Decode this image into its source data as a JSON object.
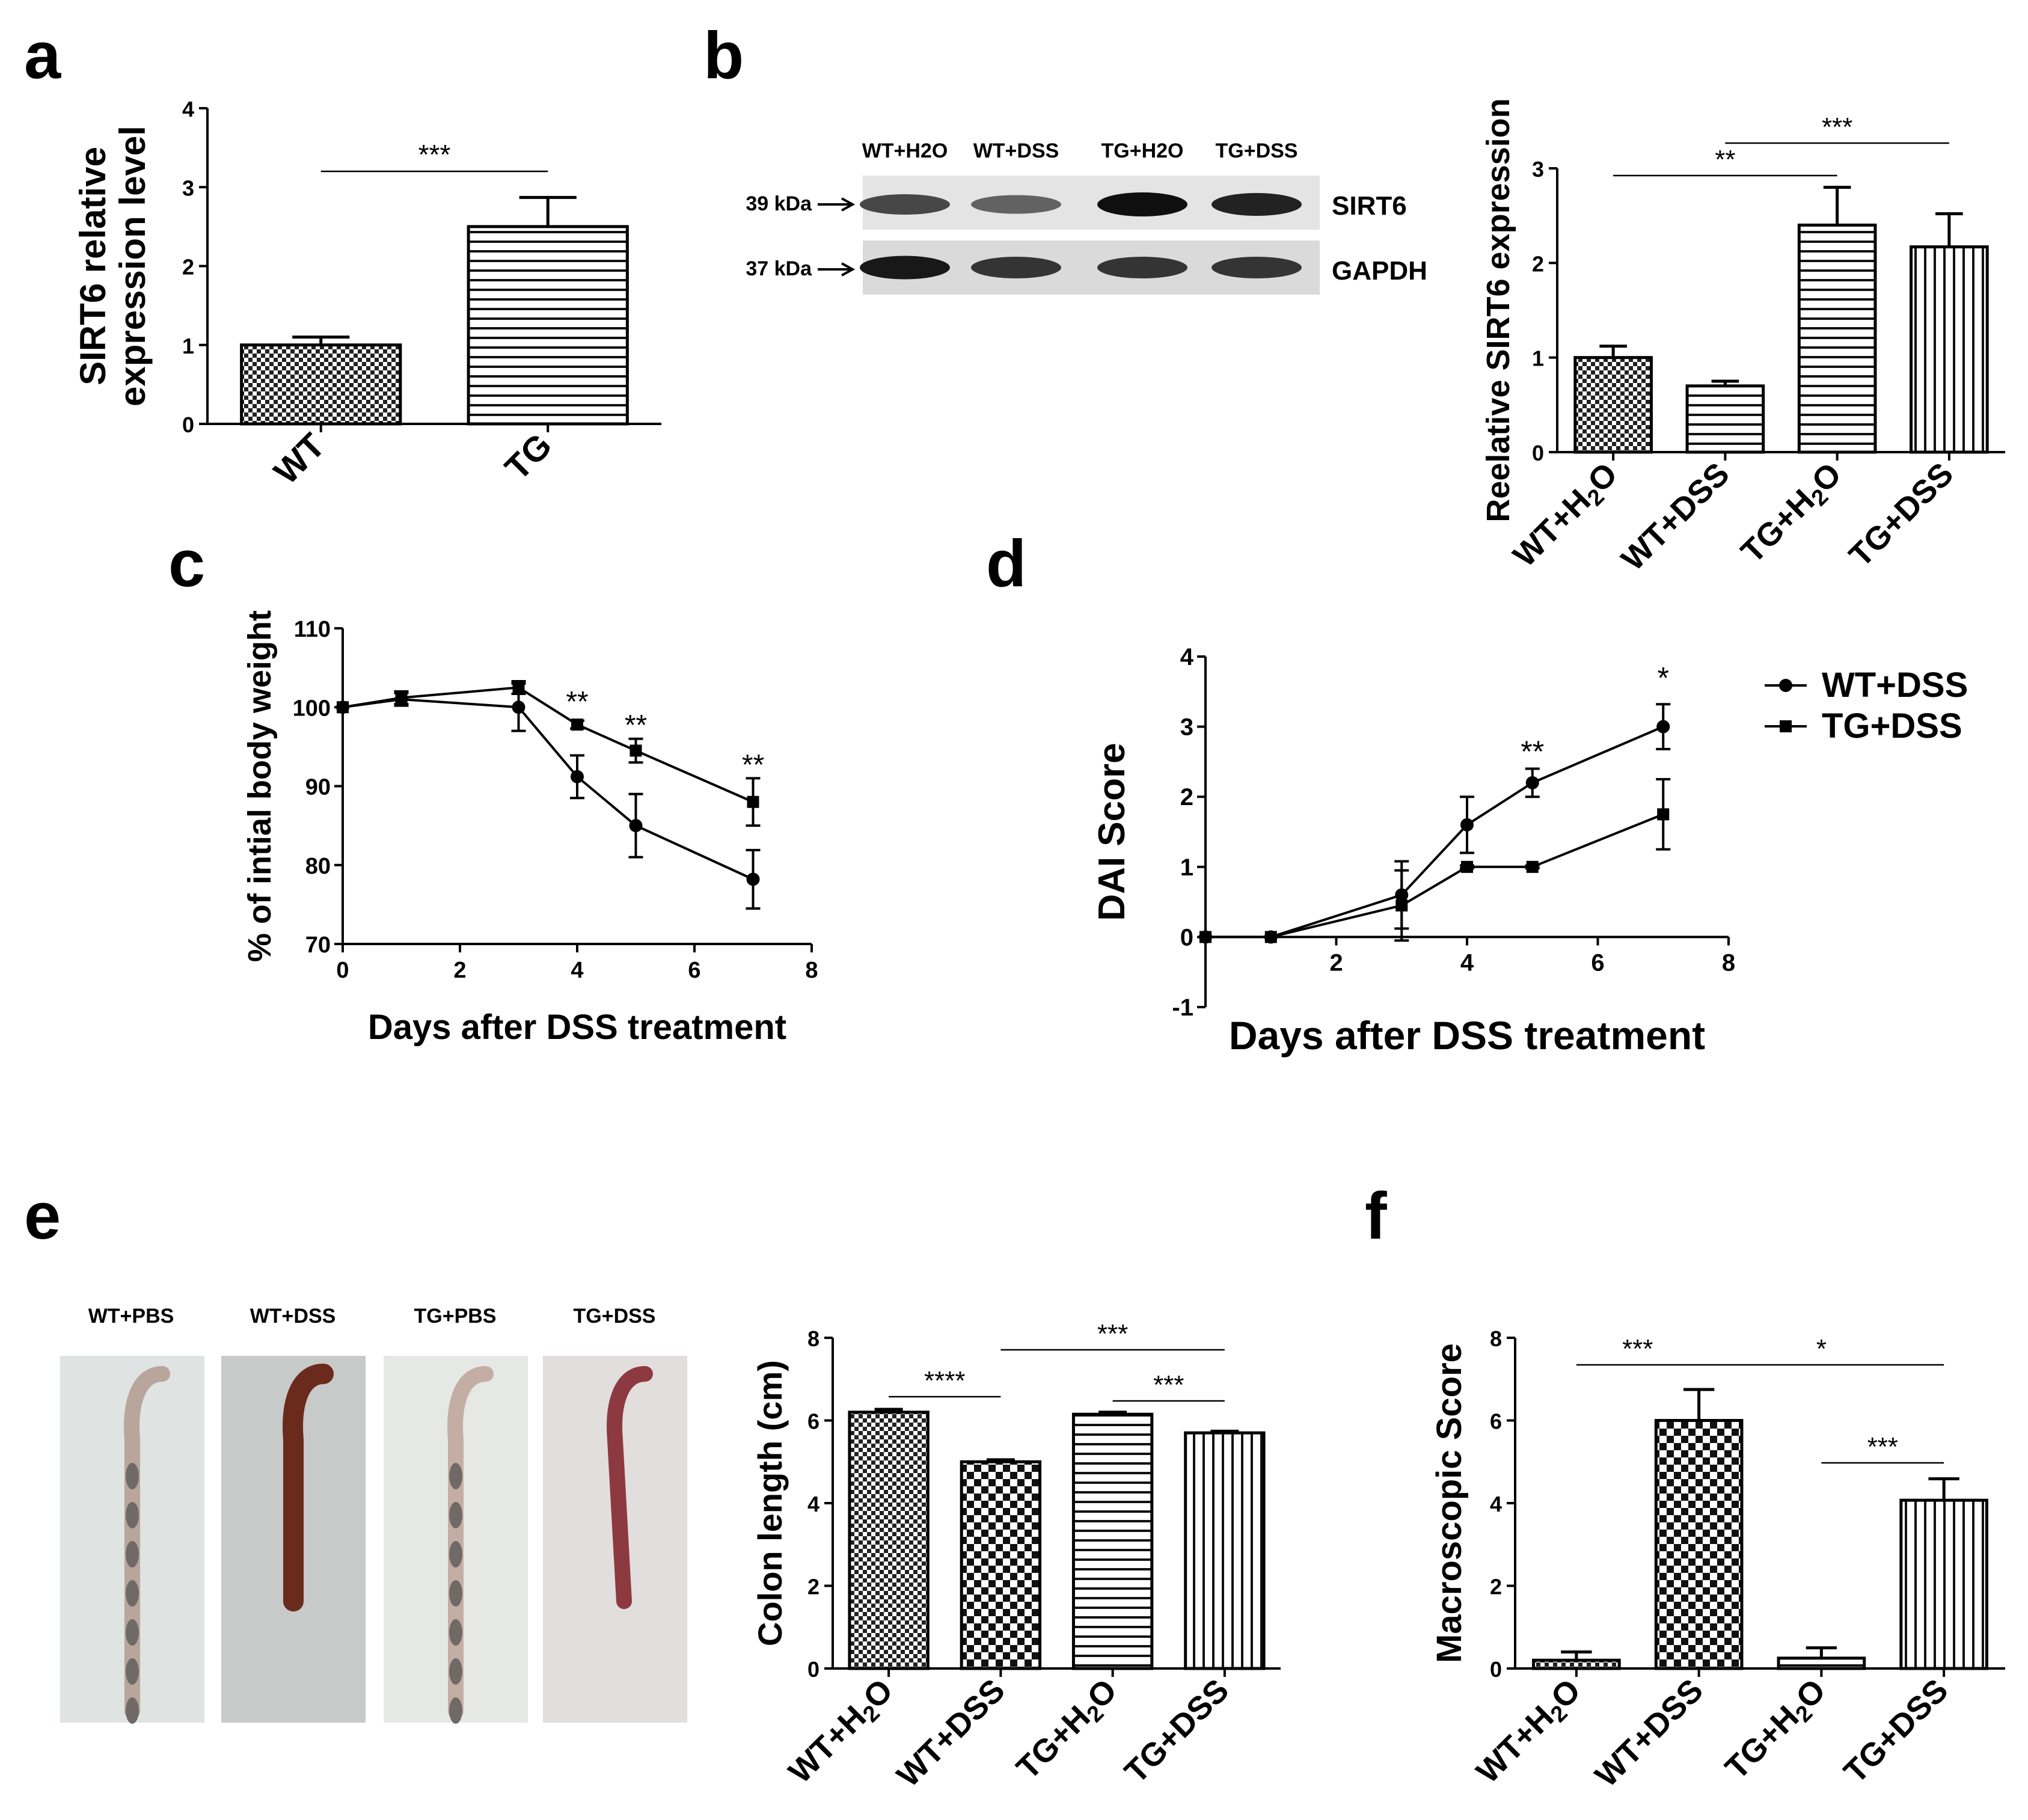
{
  "figure": {
    "panel_labels": [
      "a",
      "b",
      "c",
      "d",
      "e",
      "f"
    ]
  },
  "chart_data": [
    {
      "panel": "a",
      "type": "bar",
      "ylabel": "SIRT6 relative\nexpression level",
      "xlabel": "",
      "categories": [
        "WT",
        "TG"
      ],
      "values": [
        1.0,
        2.5
      ],
      "errors": [
        0.1,
        0.37
      ],
      "patterns": [
        "checker",
        "hstripe"
      ],
      "ylim": [
        0,
        4
      ],
      "yticks": [
        "0",
        "1",
        "2",
        "3",
        "4"
      ],
      "significance": [
        {
          "from": 0,
          "to": 1,
          "label": "***"
        }
      ]
    },
    {
      "panel": "b",
      "type": "bar",
      "ylabel": "Reelative SIRT6 expression",
      "xlabel": "",
      "categories": [
        "WT+H2O",
        "WT+DSS",
        "TG+H2O",
        "TG+DSS"
      ],
      "values": [
        1.0,
        0.7,
        2.4,
        2.17
      ],
      "errors": [
        0.12,
        0.05,
        0.4,
        0.35
      ],
      "patterns": [
        "checker",
        "hstripe",
        "hstripe",
        "vstripe"
      ],
      "ylim": [
        0,
        3
      ],
      "yticks": [
        "0",
        "1",
        "2",
        "3"
      ],
      "significance": [
        {
          "from": 0,
          "to": 2,
          "label": "**"
        },
        {
          "from": 1,
          "to": 3,
          "label": "***"
        }
      ]
    },
    {
      "panel": "c",
      "type": "line",
      "xlabel": "Days after DSS treatment",
      "ylabel": "% of intial body weight",
      "xlim": [
        0,
        8
      ],
      "ylim": [
        70,
        110
      ],
      "xticks": [
        "0",
        "2",
        "4",
        "6",
        "8"
      ],
      "yticks": [
        "70",
        "80",
        "90",
        "100",
        "110"
      ],
      "series": [
        {
          "name": "WT+DSS",
          "marker": "circle",
          "x": [
            0,
            1,
            3,
            4,
            5,
            7
          ],
          "y": [
            100,
            101,
            100,
            91.2,
            85,
            78.2
          ],
          "errors": [
            0,
            0.8,
            3,
            2.7,
            4,
            3.7
          ]
        },
        {
          "name": "TG+DSS",
          "marker": "square",
          "x": [
            0,
            1,
            3,
            4,
            5,
            7
          ],
          "y": [
            100,
            101.2,
            102.5,
            97.8,
            94.5,
            88
          ],
          "errors": [
            0,
            0.8,
            0.8,
            0.5,
            1.5,
            3
          ]
        }
      ],
      "annotations": [
        {
          "x": 4,
          "y": 99.5,
          "label": "**"
        },
        {
          "x": 5,
          "y": 96.5,
          "label": "**"
        },
        {
          "x": 7,
          "y": 91.5,
          "label": "**"
        }
      ]
    },
    {
      "panel": "d",
      "type": "line",
      "xlabel": "Days after DSS treatment",
      "ylabel": "DAI Score",
      "xlim": [
        0,
        8
      ],
      "ylim": [
        -1,
        4
      ],
      "xticks": [
        "2",
        "4",
        "6",
        "8"
      ],
      "yticks": [
        "-1",
        "0",
        "1",
        "2",
        "3",
        "4"
      ],
      "legend": "top-right",
      "series": [
        {
          "name": "WT+DSS",
          "marker": "circle",
          "x": [
            0,
            1,
            3,
            4,
            5,
            7
          ],
          "y": [
            0,
            0,
            0.6,
            1.6,
            2.2,
            3.0
          ],
          "errors": [
            0,
            0,
            0.48,
            0.4,
            0.2,
            0.32
          ]
        },
        {
          "name": "TG+DSS",
          "marker": "square",
          "x": [
            0,
            1,
            3,
            4,
            5,
            7
          ],
          "y": [
            0,
            0,
            0.45,
            1.0,
            1.0,
            1.75
          ],
          "errors": [
            0,
            0,
            0.5,
            0.02,
            0.02,
            0.5
          ]
        }
      ],
      "annotations": [
        {
          "x": 5,
          "y": 2.5,
          "label": "**"
        },
        {
          "x": 7,
          "y": 3.55,
          "label": "*"
        }
      ]
    },
    {
      "panel": "e",
      "type": "bar",
      "ylabel": "Colon length (cm)",
      "xlabel": "",
      "categories": [
        "WT+H2O",
        "WT+DSS",
        "TG+H2O",
        "TG+DSS"
      ],
      "values": [
        6.2,
        5.0,
        6.15,
        5.7
      ],
      "errors": [
        0.07,
        0.05,
        0.05,
        0.04
      ],
      "patterns": [
        "checker",
        "checker-large",
        "hstripe",
        "vstripe"
      ],
      "ylim": [
        0,
        8
      ],
      "yticks": [
        "0",
        "2",
        "4",
        "6",
        "8"
      ],
      "significance": [
        {
          "from": 0,
          "to": 1,
          "label": "****"
        },
        {
          "from": 1,
          "to": 3,
          "label": "***"
        },
        {
          "from": 2,
          "to": 3,
          "label": "***"
        }
      ]
    },
    {
      "panel": "f",
      "type": "bar",
      "ylabel": "Macroscopic Score",
      "xlabel": "",
      "categories": [
        "WT+H2O",
        "WT+DSS",
        "TG+H2O",
        "TG+DSS"
      ],
      "values": [
        0.2,
        6.0,
        0.25,
        4.07
      ],
      "errors": [
        0.2,
        0.75,
        0.25,
        0.52
      ],
      "patterns": [
        "checker",
        "checker-large",
        "hstripe",
        "vstripe"
      ],
      "ylim": [
        0,
        8
      ],
      "yticks": [
        "0",
        "2",
        "4",
        "6",
        "8"
      ],
      "significance": [
        {
          "from": 0,
          "to": 1,
          "label": "***"
        },
        {
          "from": 1,
          "to": 3,
          "label": "*"
        },
        {
          "from": 2,
          "to": 3,
          "label": "***"
        }
      ]
    }
  ],
  "western_blot": {
    "lanes": [
      "WT+H2O",
      "WT+DSS",
      "TG+H2O",
      "TG+DSS"
    ],
    "rows": [
      {
        "marker": "39 kDa",
        "protein": "SIRT6",
        "intensity": [
          0.7,
          0.55,
          1.0,
          0.9
        ]
      },
      {
        "marker": "37 kDa",
        "protein": "GAPDH",
        "intensity": [
          0.95,
          0.8,
          0.8,
          0.8
        ]
      }
    ]
  },
  "colon_photos": {
    "labels": [
      "WT+PBS",
      "WT+DSS",
      "TG+PBS",
      "TG+DSS"
    ],
    "backgrounds": [
      "#dfe3e2",
      "#c7cac8",
      "#e6e8e6",
      "#e2dedd"
    ],
    "tissue_colors": [
      "#b8a59c",
      "#6a2a1c",
      "#c4aea4",
      "#8c3a3f"
    ]
  }
}
